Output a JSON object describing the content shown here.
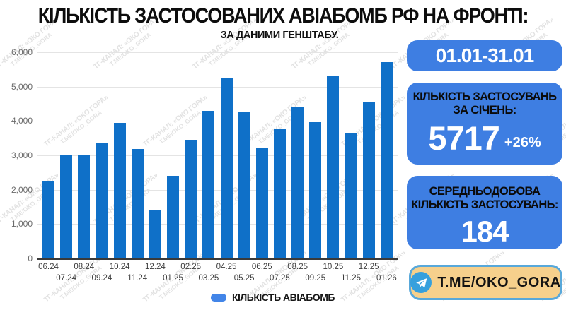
{
  "title": "КІЛЬКІСТЬ ЗАСТОСОВАНИХ АВІАБОМБ РФ НА ФРОНТІ:",
  "subtitle": "ЗА ДАНИМИ ГЕНШТАБУ.",
  "watermark": {
    "lines": [
      "ТГ-КАНАЛ: «ОКО ГОРА»",
      "T.ME/OKO_GORA"
    ]
  },
  "chart_data": {
    "type": "bar",
    "title": "КІЛЬКІСТЬ ЗАСТОСОВАНИХ АВІАБОМБ РФ НА ФРОНТІ:",
    "subtitle": "ЗА ДАНИМИ ГЕНШТАБУ.",
    "categories": [
      "06.24",
      "07.24",
      "08.24",
      "09.24",
      "10.24",
      "11.24",
      "12.24",
      "01.25",
      "02.25",
      "03.25",
      "04.25",
      "05.25",
      "06.25",
      "07.25",
      "08.25",
      "09.25",
      "10.25",
      "11.25",
      "12.25",
      "01.26"
    ],
    "values": [
      2250,
      3000,
      3030,
      3360,
      3950,
      3190,
      1400,
      2400,
      3450,
      4300,
      5250,
      4280,
      3220,
      3780,
      4400,
      3960,
      5320,
      3640,
      4537,
      5717
    ],
    "series_name": "КІЛЬКІСТЬ АВІАБОМБ",
    "xlabel": "",
    "ylabel": "",
    "ylim": [
      0,
      6000
    ],
    "ytick_step": 1000,
    "grid": true,
    "legend_position": "bottom",
    "bar_color": "#0f70c8",
    "legend_swatch_color": "#4285e8"
  },
  "sidebar": {
    "accent_color": "#3e7ee2",
    "period_badge": "01.01-31.01",
    "month_box": {
      "heading_line1": "КІЛЬКІСТЬ ЗАСТОСУВАНЬ",
      "heading_line2": "ЗА СІЧЕНЬ:",
      "value": "5717",
      "delta": "+26%"
    },
    "daily_box": {
      "heading_line1": "СЕРЕДНЬОДОБОВА",
      "heading_line2": "КІЛЬКІСТЬ ЗАСТОСУВАНЬ:",
      "value": "184"
    }
  },
  "footer": {
    "telegram_label": "T.ME/OKO_GORA",
    "telegram_icon": "telegram-paper-plane-icon",
    "button_bg": "#f6d08c",
    "button_border": "#58a8da",
    "icon_circle_color": "#36a0dd"
  }
}
